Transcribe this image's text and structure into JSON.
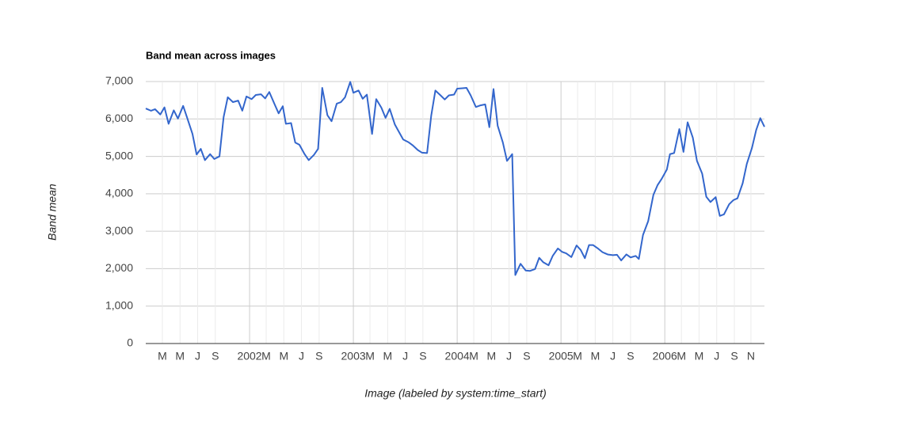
{
  "chart_data": {
    "type": "line",
    "title": "Band mean across images",
    "x_label": "Image (labeled by system:time_start)",
    "y_label": "Band mean",
    "xlim": [
      2001.0,
      2006.96
    ],
    "ylim": [
      0,
      7000
    ],
    "xticks": [
      {
        "value": 2001.16,
        "label": "M"
      },
      {
        "value": 2001.33,
        "label": "M"
      },
      {
        "value": 2001.5,
        "label": "J"
      },
      {
        "value": 2001.67,
        "label": "S"
      },
      2002,
      {
        "value": 2002.16,
        "label": "M"
      },
      {
        "value": 2002.33,
        "label": "M"
      },
      {
        "value": 2002.5,
        "label": "J"
      },
      {
        "value": 2002.67,
        "label": "S"
      },
      2003,
      {
        "value": 2003.16,
        "label": "M"
      },
      {
        "value": 2003.33,
        "label": "M"
      },
      {
        "value": 2003.5,
        "label": "J"
      },
      {
        "value": 2003.67,
        "label": "S"
      },
      2004,
      {
        "value": 2004.16,
        "label": "M"
      },
      {
        "value": 2004.33,
        "label": "M"
      },
      {
        "value": 2004.5,
        "label": "J"
      },
      {
        "value": 2004.67,
        "label": "S"
      },
      2005,
      {
        "value": 2005.16,
        "label": "M"
      },
      {
        "value": 2005.33,
        "label": "M"
      },
      {
        "value": 2005.5,
        "label": "J"
      },
      {
        "value": 2005.67,
        "label": "S"
      },
      2006,
      {
        "value": 2006.16,
        "label": "M"
      },
      {
        "value": 2006.33,
        "label": "M"
      },
      {
        "value": 2006.5,
        "label": "J"
      },
      {
        "value": 2006.67,
        "label": "S"
      },
      {
        "value": 2006.83,
        "label": "N"
      }
    ],
    "yticks": [
      0,
      {
        "value": 1000,
        "label": "1,000"
      },
      {
        "value": 2000,
        "label": "2,000"
      },
      {
        "value": 3000,
        "label": "3,000"
      },
      {
        "value": 4000,
        "label": "4,000"
      },
      {
        "value": 5000,
        "label": "5,000"
      },
      {
        "value": 6000,
        "label": "6,000"
      },
      {
        "value": 7000,
        "label": "7,000"
      }
    ],
    "grid": true,
    "x": [
      2001.0,
      2001.05,
      2001.09,
      2001.14,
      2001.18,
      2001.22,
      2001.27,
      2001.31,
      2001.36,
      2001.4,
      2001.45,
      2001.49,
      2001.53,
      2001.57,
      2001.62,
      2001.66,
      2001.71,
      2001.75,
      2001.79,
      2001.84,
      2001.89,
      2001.93,
      2001.97,
      2002.02,
      2002.06,
      2002.11,
      2002.15,
      2002.19,
      2002.24,
      2002.28,
      2002.32,
      2002.35,
      2002.4,
      2002.44,
      2002.48,
      2002.53,
      2002.57,
      2002.62,
      2002.66,
      2002.7,
      2002.75,
      2002.79,
      2002.84,
      2002.88,
      2002.92,
      2002.97,
      2003.0,
      2003.05,
      2003.09,
      2003.13,
      2003.18,
      2003.22,
      2003.27,
      2003.31,
      2003.35,
      2003.4,
      2003.44,
      2003.48,
      2003.53,
      2003.57,
      2003.62,
      2003.66,
      2003.71,
      2003.75,
      2003.79,
      2003.84,
      2003.88,
      2003.92,
      2003.97,
      2004.0,
      2004.05,
      2004.09,
      2004.13,
      2004.18,
      2004.22,
      2004.27,
      2004.31,
      2004.35,
      2004.39,
      2004.44,
      2004.48,
      2004.53,
      2004.56,
      2004.61,
      2004.66,
      2004.7,
      2004.75,
      2004.79,
      2004.83,
      2004.88,
      2004.92,
      2004.97,
      2005.01,
      2005.05,
      2005.1,
      2005.15,
      2005.19,
      2005.23,
      2005.27,
      2005.31,
      2005.36,
      2005.4,
      2005.45,
      2005.5,
      2005.54,
      2005.58,
      2005.63,
      2005.67,
      2005.72,
      2005.75,
      2005.79,
      2005.84,
      2005.89,
      2005.93,
      2005.97,
      2006.02,
      2006.05,
      2006.09,
      2006.14,
      2006.18,
      2006.22,
      2006.27,
      2006.31,
      2006.36,
      2006.4,
      2006.44,
      2006.49,
      2006.53,
      2006.57,
      2006.62,
      2006.66,
      2006.7,
      2006.75,
      2006.79,
      2006.84,
      2006.88,
      2006.92,
      2006.96
    ],
    "series": [
      {
        "name": "Band mean",
        "color": "#3366cc",
        "values": [
          6280,
          6220,
          6260,
          6120,
          6310,
          5870,
          6230,
          6010,
          6350,
          6020,
          5600,
          5050,
          5200,
          4900,
          5060,
          4930,
          5000,
          6050,
          6580,
          6450,
          6490,
          6220,
          6600,
          6530,
          6640,
          6660,
          6550,
          6720,
          6400,
          6150,
          6340,
          5870,
          5890,
          5370,
          5310,
          5060,
          4900,
          5040,
          5200,
          6830,
          6100,
          5940,
          6410,
          6450,
          6580,
          6990,
          6700,
          6760,
          6540,
          6650,
          5600,
          6530,
          6300,
          6030,
          6270,
          5850,
          5650,
          5450,
          5380,
          5300,
          5170,
          5100,
          5090,
          6090,
          6760,
          6630,
          6520,
          6630,
          6650,
          6810,
          6820,
          6830,
          6630,
          6320,
          6360,
          6390,
          5780,
          6800,
          5820,
          5370,
          4880,
          5060,
          1830,
          2130,
          1950,
          1940,
          1990,
          2290,
          2170,
          2090,
          2340,
          2540,
          2450,
          2410,
          2310,
          2620,
          2500,
          2280,
          2630,
          2630,
          2530,
          2440,
          2380,
          2360,
          2370,
          2220,
          2380,
          2300,
          2340,
          2260,
          2900,
          3270,
          3970,
          4230,
          4400,
          4650,
          5060,
          5090,
          5730,
          5120,
          5910,
          5500,
          4880,
          4540,
          3920,
          3780,
          3910,
          3410,
          3450,
          3720,
          3830,
          3880,
          4280,
          4800,
          5230,
          5700,
          6020,
          5790
        ]
      }
    ]
  }
}
